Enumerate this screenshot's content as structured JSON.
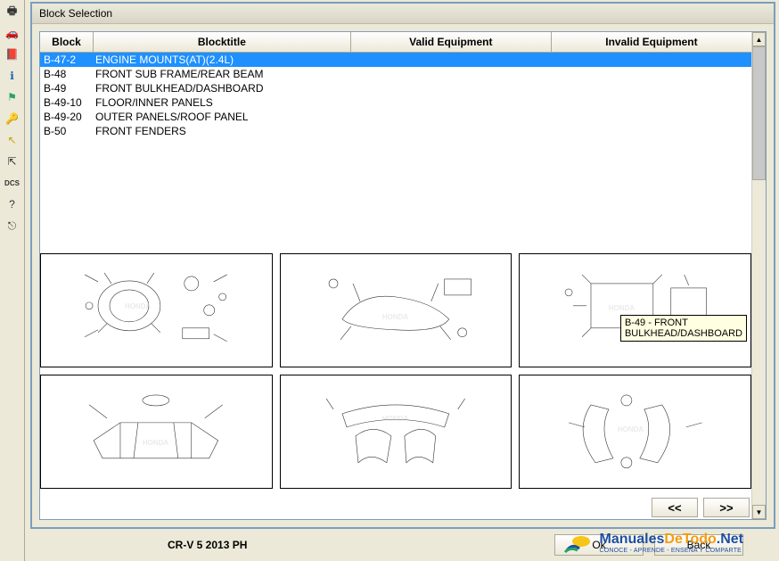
{
  "toolbar": [
    {
      "name": "tool-print",
      "glyph": "🖶",
      "color": "#333"
    },
    {
      "name": "tool-car",
      "glyph": "🚗",
      "color": "#1a5fb4"
    },
    {
      "name": "tool-book",
      "glyph": "📕",
      "color": "#a51d2d"
    },
    {
      "name": "tool-info",
      "glyph": "ℹ",
      "color": "#1a5fb4"
    },
    {
      "name": "tool-flag",
      "glyph": "⚑",
      "color": "#26a269"
    },
    {
      "name": "tool-key",
      "glyph": "🔑",
      "color": "#a51d2d"
    },
    {
      "name": "tool-arrow",
      "glyph": "↖",
      "color": "#c9a000"
    },
    {
      "name": "tool-pointer",
      "glyph": "⇱",
      "color": "#333"
    },
    {
      "name": "tool-dcs",
      "glyph": "DCS",
      "color": "#333"
    },
    {
      "name": "tool-help",
      "glyph": "?",
      "color": "#333"
    },
    {
      "name": "tool-exit",
      "glyph": "⎋",
      "color": "#333"
    }
  ],
  "window": {
    "title": "Block Selection"
  },
  "table": {
    "headers": {
      "block": "Block",
      "title": "Blocktitle",
      "valid": "Valid Equipment",
      "invalid": "Invalid Equipment"
    },
    "rows": [
      {
        "block": "B-47-2",
        "title": "ENGINE MOUNTS(AT)(2.4L)",
        "selected": true
      },
      {
        "block": "B-48",
        "title": "FRONT SUB FRAME/REAR BEAM",
        "selected": false
      },
      {
        "block": "B-49",
        "title": "FRONT BULKHEAD/DASHBOARD",
        "selected": false
      },
      {
        "block": "B-49-10",
        "title": "FLOOR/INNER PANELS",
        "selected": false
      },
      {
        "block": "B-49-20",
        "title": "OUTER PANELS/ROOF PANEL",
        "selected": false
      },
      {
        "block": "B-50",
        "title": "FRONT FENDERS",
        "selected": false
      }
    ]
  },
  "tooltip": "B-49 - FRONT\nBULKHEAD/DASHBOARD",
  "nav": {
    "prev": "<<",
    "next": ">>"
  },
  "footer": {
    "label": "CR-V 5 2013 PH",
    "ok": "Ok",
    "back": "Back"
  },
  "watermark": {
    "brand1": "Manuales",
    "brand2": "DeTodo",
    "suffix": ".Net",
    "sub": "CONOCE - APRENDE - ENSEÑA Y COMPARTE"
  }
}
